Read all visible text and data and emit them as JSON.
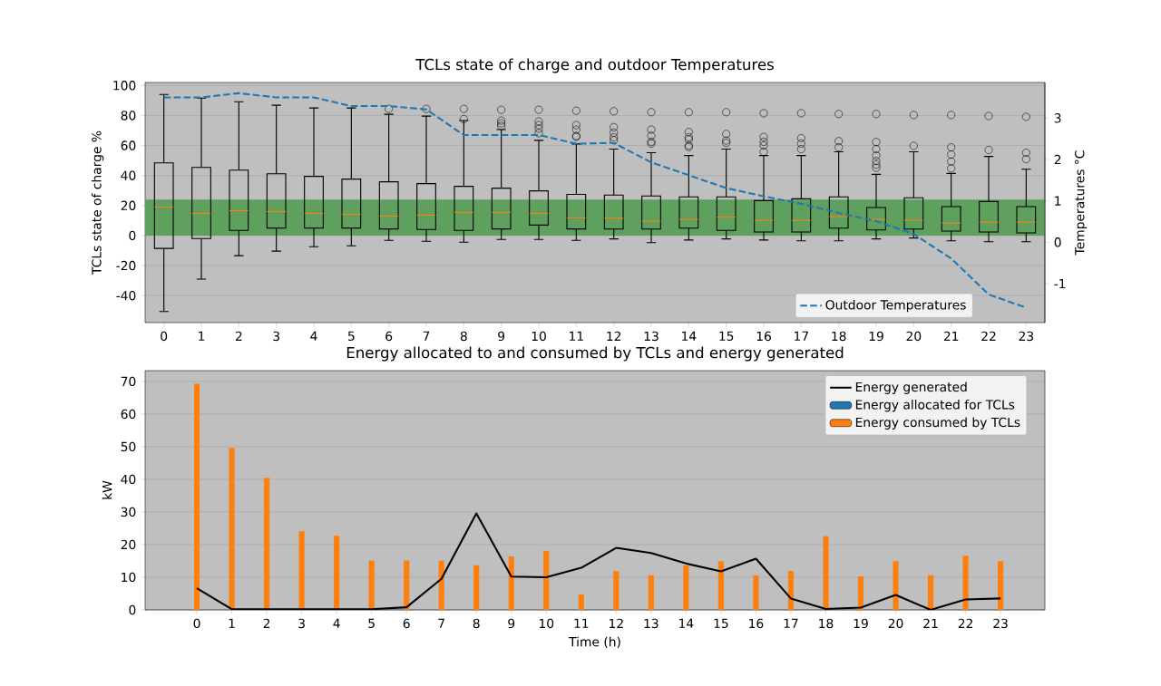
{
  "chart_data": [
    {
      "type": "box",
      "title": "TCLs state of charge and outdoor Temperatures",
      "ylabel": "TCLs state of charge %",
      "y2label": "Temperatures °C",
      "categories": [
        "0",
        "1",
        "2",
        "3",
        "4",
        "5",
        "6",
        "7",
        "8",
        "9",
        "10",
        "11",
        "12",
        "13",
        "14",
        "15",
        "16",
        "17",
        "18",
        "19",
        "20",
        "21",
        "22",
        "23"
      ],
      "ylim": [
        -58,
        102
      ],
      "yticks": [
        -40,
        -20,
        0,
        20,
        40,
        60,
        80,
        100
      ],
      "y2lim": [
        -1.94,
        3.86
      ],
      "y2ticks": [
        -1,
        0,
        1,
        2,
        3
      ],
      "grid": "y",
      "legend": "bottom right",
      "bands": [
        {
          "axis": "y",
          "from": 0,
          "to": 24,
          "color": "#5fa05f"
        }
      ],
      "series": [
        {
          "type": "box",
          "color": "#000000",
          "boxes": [
            {
              "low": -50.6,
              "q1": -8.6,
              "median": 19,
              "q3": 48.4,
              "high": 94
            },
            {
              "low": -29,
              "q1": -2,
              "median": 14.8,
              "q3": 45.4,
              "high": 91.6
            },
            {
              "low": -13.4,
              "q1": 3.4,
              "median": 16.6,
              "q3": 43.6,
              "high": 89.2
            },
            {
              "low": -10.4,
              "q1": 5,
              "median": 16,
              "q3": 41.2,
              "high": 86.8
            },
            {
              "low": -7.4,
              "q1": 5,
              "median": 14.8,
              "q3": 39.4,
              "high": 85
            },
            {
              "low": -6.8,
              "q1": 5,
              "median": 14.2,
              "q3": 37.6,
              "high": 85
            },
            {
              "low": -3.2,
              "q1": 4.4,
              "median": 13,
              "q3": 35.8,
              "high": 80.8,
              "outliers": [
                84.4
              ]
            },
            {
              "low": -3.8,
              "q1": 4,
              "median": 13.6,
              "q3": 34.6,
              "high": 79.6,
              "outliers": [
                84.4
              ]
            },
            {
              "low": -4.4,
              "q1": 3.4,
              "median": 15.4,
              "q3": 32.8,
              "high": 76.6,
              "outliers": [
                84.4,
                77.6
              ]
            },
            {
              "low": -2.6,
              "q1": 4.4,
              "median": 15.4,
              "q3": 31.6,
              "high": 70.6,
              "outliers": [
                83.8,
                76.6,
                74.8,
                73
              ]
            },
            {
              "low": -2.6,
              "q1": 7,
              "median": 14.8,
              "q3": 29.8,
              "high": 63.4,
              "outliers": [
                83.8,
                76,
                73.6,
                71.2,
                68.2
              ]
            },
            {
              "low": -3.2,
              "q1": 4.4,
              "median": 11.8,
              "q3": 27.4,
              "high": 61,
              "outliers": [
                83.2,
                73.6,
                70.6,
                66.4,
                65.8
              ]
            },
            {
              "low": -2.2,
              "q1": 4.3,
              "median": 11.6,
              "q3": 27,
              "high": 57.6,
              "outliers": [
                82.8,
                72.2,
                68.6,
                65.5,
                63.5
              ]
            },
            {
              "low": -4.7,
              "q1": 4.3,
              "median": 9.5,
              "q3": 26.4,
              "high": 55.2,
              "outliers": [
                82.2,
                70.6,
                66.5,
                62.5,
                61.3
              ]
            },
            {
              "low": -3,
              "q1": 4.9,
              "median": 10.8,
              "q3": 25.8,
              "high": 53.3,
              "outliers": [
                82.2,
                69,
                65.5,
                64,
                60,
                59
              ]
            },
            {
              "low": -2.2,
              "q1": 3.4,
              "median": 12.2,
              "q3": 25.8,
              "high": 57.6,
              "outliers": [
                82.2,
                67.7,
                63.3,
                61.7
              ]
            },
            {
              "low": -3,
              "q1": 2.4,
              "median": 10.1,
              "q3": 23.3,
              "high": 53.3,
              "outliers": [
                81.5,
                65.7,
                62.5,
                60,
                55.8
              ]
            },
            {
              "low": -3.5,
              "q1": 2.4,
              "median": 10.1,
              "q3": 24.5,
              "high": 53.3,
              "outliers": [
                81.5,
                64.9,
                61.3,
                57.6
              ]
            },
            {
              "low": -3.5,
              "q1": 4.9,
              "median": 12.6,
              "q3": 25.8,
              "high": 55.8,
              "outliers": [
                81,
                62.9,
                58.8
              ]
            },
            {
              "low": -2.2,
              "q1": 3.7,
              "median": 10.8,
              "q3": 18.7,
              "high": 40.8,
              "outliers": [
                81,
                62.3,
                57.6,
                53.3,
                49.7,
                47.3,
                45.2
              ]
            },
            {
              "low": -1.6,
              "q1": 4.3,
              "median": 10.1,
              "q3": 25.2,
              "high": 55.8,
              "outliers": [
                80.3,
                59.8
              ]
            },
            {
              "low": -3.5,
              "q1": 3,
              "median": 8.3,
              "q3": 19.3,
              "high": 41.4,
              "outliers": [
                80.3,
                58.8,
                54,
                49.3,
                44.8
              ]
            },
            {
              "low": -4.1,
              "q1": 2.4,
              "median": 8.9,
              "q3": 22.7,
              "high": 52.7,
              "outliers": [
                79.7,
                57
              ]
            },
            {
              "low": -4.1,
              "q1": 1.8,
              "median": 8.9,
              "q3": 19.3,
              "high": 44.2,
              "outliers": [
                79.1,
                55.2,
                50.9
              ]
            }
          ]
        },
        {
          "type": "line",
          "name": "Outdoor Temperatures",
          "color": "#1f77b4",
          "axis": "y2",
          "line_style": "dashed",
          "values": [
            3.5,
            3.5,
            3.6,
            3.5,
            3.5,
            3.29,
            3.29,
            3.21,
            2.59,
            2.59,
            2.59,
            2.38,
            2.4,
            1.93,
            1.62,
            1.31,
            1.11,
            0.93,
            0.71,
            0.51,
            0.2,
            -0.39,
            -1.26,
            -1.58
          ]
        }
      ]
    },
    {
      "type": "bar",
      "title": "Energy allocated to and consumed by TCLs and energy generated",
      "xlabel": "Time (h)",
      "ylabel": "kW",
      "categories": [
        "0",
        "1",
        "2",
        "3",
        "4",
        "5",
        "6",
        "7",
        "8",
        "9",
        "10",
        "11",
        "12",
        "13",
        "14",
        "15",
        "16",
        "17",
        "18",
        "19",
        "20",
        "21",
        "22",
        "23"
      ],
      "ylim": [
        0,
        73.3
      ],
      "yticks": [
        0,
        10,
        20,
        30,
        40,
        50,
        60,
        70
      ],
      "grid": "y",
      "legend": "top right",
      "series": [
        {
          "type": "line",
          "name": "Energy generated",
          "color": "#000000",
          "values": [
            6.6,
            0.2,
            0.2,
            0.2,
            0.2,
            0.2,
            0.8,
            9.5,
            29.6,
            10.2,
            10,
            12.9,
            19,
            17.4,
            14.2,
            11.8,
            15.7,
            3.5,
            0.3,
            0.7,
            4.6,
            0,
            3.2,
            3.5
          ]
        },
        {
          "name": "Energy allocated for TCLs",
          "color": "#1f77b4",
          "values": [
            null,
            null,
            null,
            null,
            null,
            null,
            null,
            null,
            null,
            null,
            null,
            null,
            null,
            null,
            null,
            null,
            null,
            null,
            null,
            null,
            null,
            null,
            null,
            null
          ]
        },
        {
          "name": "Energy consumed by TCLs",
          "color": "#ff7f0e",
          "values": [
            69.3,
            49.6,
            40.5,
            24.1,
            22.7,
            15.1,
            15.1,
            15.1,
            13.7,
            16.4,
            18.1,
            4.7,
            11.9,
            10.6,
            13.6,
            14.9,
            10.6,
            11.9,
            22.6,
            10.3,
            14.9,
            10.6,
            16.6,
            14.9
          ]
        }
      ]
    }
  ]
}
